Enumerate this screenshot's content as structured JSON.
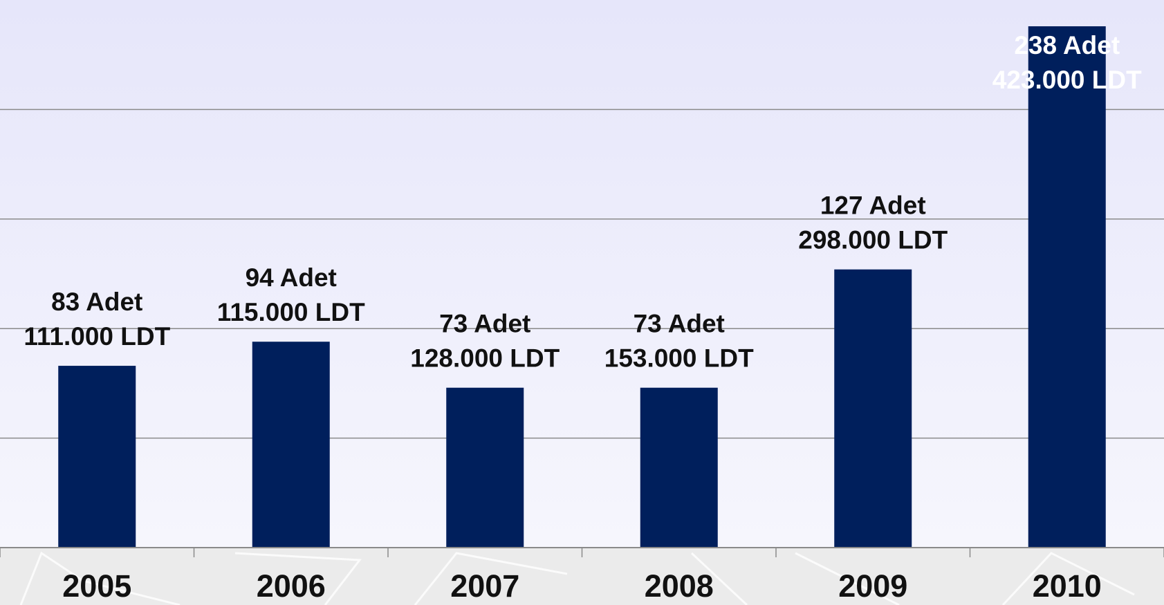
{
  "chart_data": {
    "type": "bar",
    "categories": [
      "2005",
      "2006",
      "2007",
      "2008",
      "2009",
      "2010"
    ],
    "values": [
      83,
      94,
      73,
      73,
      127,
      238
    ],
    "value_labels": [
      "83 Adet",
      "94 Adet",
      "73 Adet",
      "73 Adet",
      "127 Adet",
      "238 Adet"
    ],
    "ldt_labels": [
      "111.000 LDT",
      "115.000 LDT",
      "128.000 LDT",
      "153.000 LDT",
      "298.000 LDT",
      "423.000 LDT"
    ],
    "color": "#001f5c",
    "ylim": [
      0,
      250
    ],
    "yticks": [
      0,
      50,
      100,
      150,
      200
    ],
    "grid": true
  }
}
